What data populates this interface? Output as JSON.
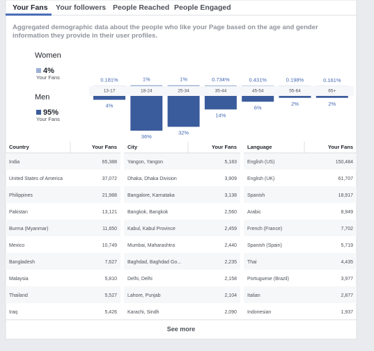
{
  "tabs": [
    "Your Fans",
    "Your followers",
    "People Reached",
    "People Engaged"
  ],
  "description": "Aggregated demographic data about the people who like your Page based on the age and gender information they provide in their user profiles.",
  "summary": [
    {
      "label": "Women",
      "share": "4%",
      "sub": "Your Fans"
    },
    {
      "label": "Men",
      "share": "95%",
      "sub": "Your Fans"
    }
  ],
  "chart_data": {
    "type": "bar",
    "categories": [
      "13-17",
      "18-24",
      "25-34",
      "35-44",
      "45-54",
      "55-64",
      "65+"
    ],
    "series": [
      {
        "name": "Women",
        "color": "#9cb0d4",
        "values": [
          0.181,
          1,
          1,
          0.734,
          0.431,
          0.198,
          0.161
        ],
        "value_labels": [
          "0.181%",
          "1%",
          "1%",
          "0.734%",
          "0.431%",
          "0.198%",
          "0.161%"
        ]
      },
      {
        "name": "Men",
        "color": "#3b5c9c",
        "values": [
          4,
          36,
          32,
          14,
          6,
          2,
          2
        ],
        "value_labels": [
          "4%",
          "36%",
          "32%",
          "14%",
          "6%",
          "2%",
          "2%"
        ]
      }
    ]
  },
  "tables": [
    {
      "headers": [
        "Country",
        "Your Fans"
      ],
      "rows": [
        [
          "India",
          "65,388"
        ],
        [
          "United States of America",
          "37,072"
        ],
        [
          "Philippines",
          "21,988"
        ],
        [
          "Pakistan",
          "13,121"
        ],
        [
          "Burma (Myanmar)",
          "11,650"
        ],
        [
          "Mexico",
          "10,749"
        ],
        [
          "Bangladesh",
          "7,627"
        ],
        [
          "Malaysia",
          "5,810"
        ],
        [
          "Thailand",
          "5,527"
        ],
        [
          "Iraq",
          "5,426"
        ]
      ]
    },
    {
      "headers": [
        "City",
        "Your Fans"
      ],
      "rows": [
        [
          "Yangon, Yangon",
          "5,183"
        ],
        [
          "Dhaka, Dhaka Division",
          "3,909"
        ],
        [
          "Bangalore, Karnataka",
          "3,138"
        ],
        [
          "Bangkok, Bangkok",
          "2,560"
        ],
        [
          "Kabul, Kabul Province",
          "2,459"
        ],
        [
          "Mumbai, Maharashtra",
          "2,440"
        ],
        [
          "Baghdad, Baghdad Go...",
          "2,235"
        ],
        [
          "Delhi, Delhi",
          "2,158"
        ],
        [
          "Lahore, Punjab",
          "2,104"
        ],
        [
          "Karachi, Sindh",
          "2,090"
        ]
      ]
    },
    {
      "headers": [
        "Language",
        "Your Fans"
      ],
      "rows": [
        [
          "English (US)",
          "150,484"
        ],
        [
          "English (UK)",
          "61,707"
        ],
        [
          "Spanish",
          "18,917"
        ],
        [
          "Arabic",
          "8,949"
        ],
        [
          "French (France)",
          "7,702"
        ],
        [
          "Spanish (Spain)",
          "5,719"
        ],
        [
          "Thai",
          "4,435"
        ],
        [
          "Portuguese (Brazil)",
          "3,977"
        ],
        [
          "Italian",
          "2,877"
        ],
        [
          "Indonesian",
          "1,937"
        ]
      ]
    }
  ],
  "see_more": "See more"
}
